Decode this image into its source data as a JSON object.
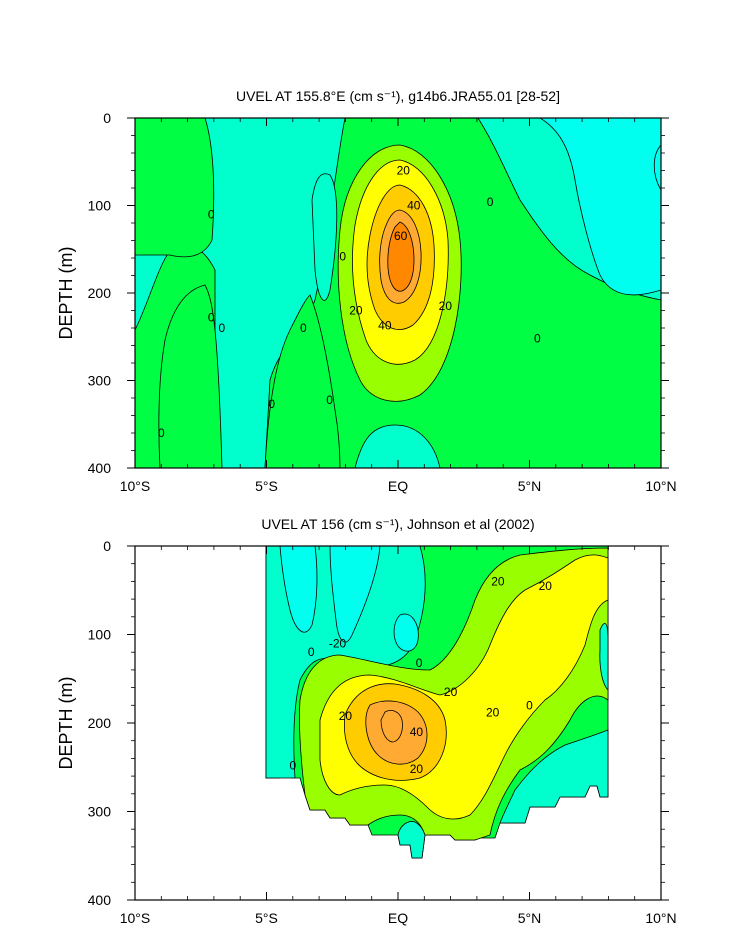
{
  "chart_data": [
    {
      "type": "heatmap",
      "subtype": "filled-contour",
      "title": "UVEL AT 155.8°E (cm s⁻¹), g14b6.JRA55.01 [28-52]",
      "ylabel": "DEPTH (m)",
      "xlabel": "",
      "xlim": [
        -10,
        10
      ],
      "ylim": [
        400,
        0
      ],
      "y_reversed": true,
      "xticks": [
        -10,
        -5,
        0,
        5,
        10
      ],
      "xtick_labels": [
        "10°S",
        "5°S",
        "EQ",
        "5°N",
        "10°N"
      ],
      "yticks": [
        0,
        100,
        200,
        300,
        400
      ],
      "ytick_labels": [
        "0",
        "100",
        "200",
        "300",
        "400"
      ],
      "contour_levels": [
        -20,
        0,
        20,
        40,
        60
      ],
      "level_colors": [
        "#00ffff",
        "#00ffcc",
        "#00ff00",
        "#99ff00",
        "#ffff00",
        "#ffcc00",
        "#ffaa33",
        "#ff8800"
      ],
      "jet_core": {
        "lat": 0.0,
        "depth": 170,
        "max_speed": 66
      },
      "contour_labels": [
        {
          "text": "20",
          "lat": 0.2,
          "depth": 60
        },
        {
          "text": "40",
          "lat": 0.6,
          "depth": 100
        },
        {
          "text": "60",
          "lat": 0.1,
          "depth": 135
        },
        {
          "text": "20",
          "lat": -1.6,
          "depth": 220
        },
        {
          "text": "40",
          "lat": -0.5,
          "depth": 237
        },
        {
          "text": "20",
          "lat": 1.8,
          "depth": 215
        },
        {
          "text": "0",
          "lat": -7.1,
          "depth": 110
        },
        {
          "text": "0",
          "lat": 3.5,
          "depth": 96
        },
        {
          "text": "0",
          "lat": -2.1,
          "depth": 158
        },
        {
          "text": "0",
          "lat": -7.1,
          "depth": 228
        },
        {
          "text": "0",
          "lat": -6.7,
          "depth": 240
        },
        {
          "text": "0",
          "lat": -3.6,
          "depth": 240
        },
        {
          "text": "0",
          "lat": 5.3,
          "depth": 252
        },
        {
          "text": "0",
          "lat": -4.8,
          "depth": 327
        },
        {
          "text": "0",
          "lat": -2.6,
          "depth": 322
        },
        {
          "text": "0",
          "lat": -9.0,
          "depth": 360
        }
      ]
    },
    {
      "type": "heatmap",
      "subtype": "filled-contour",
      "title": "UVEL AT 156 (cm s⁻¹), Johnson et al (2002)",
      "ylabel": "DEPTH (m)",
      "xlabel": "",
      "xlim": [
        -10,
        10
      ],
      "ylim": [
        400,
        0
      ],
      "y_reversed": true,
      "data_lat_range": [
        -5,
        8
      ],
      "xticks": [
        -10,
        -5,
        0,
        5,
        10
      ],
      "xtick_labels": [
        "10°S",
        "5°S",
        "EQ",
        "5°N",
        "10°N"
      ],
      "yticks": [
        0,
        100,
        200,
        300,
        400
      ],
      "ytick_labels": [
        "0",
        "100",
        "200",
        "300",
        "400"
      ],
      "contour_levels": [
        -20,
        0,
        20,
        40,
        60
      ],
      "level_colors": [
        "#00ffff",
        "#00ffcc",
        "#00ff00",
        "#99ff00",
        "#ffff00",
        "#ffcc00",
        "#ffaa33",
        "#ff8800"
      ],
      "jet_core": {
        "lat": -0.2,
        "depth": 205,
        "max_speed": 50
      },
      "contour_labels": [
        {
          "text": "20",
          "lat": 3.8,
          "depth": 40
        },
        {
          "text": "20",
          "lat": 5.6,
          "depth": 45
        },
        {
          "text": "-20",
          "lat": -2.3,
          "depth": 110
        },
        {
          "text": "0",
          "lat": -3.3,
          "depth": 120
        },
        {
          "text": "0",
          "lat": 0.8,
          "depth": 132
        },
        {
          "text": "20",
          "lat": 2.0,
          "depth": 165
        },
        {
          "text": "20",
          "lat": -2.0,
          "depth": 192
        },
        {
          "text": "20",
          "lat": 3.6,
          "depth": 188
        },
        {
          "text": "0",
          "lat": 5.0,
          "depth": 180
        },
        {
          "text": "40",
          "lat": 0.7,
          "depth": 210
        },
        {
          "text": "20",
          "lat": 0.7,
          "depth": 252
        },
        {
          "text": "0",
          "lat": -4.0,
          "depth": 248
        }
      ]
    }
  ]
}
